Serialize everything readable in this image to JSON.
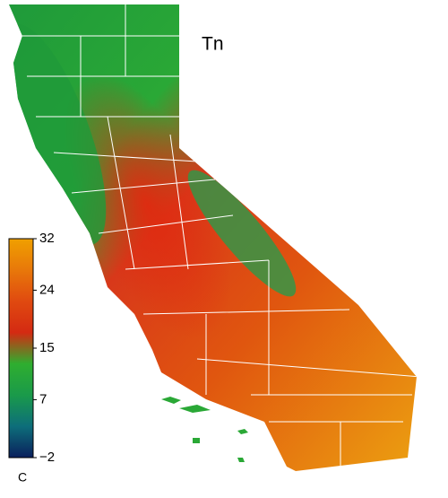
{
  "title": "Tn",
  "colorbar": {
    "label": "C",
    "range": [
      -2,
      32
    ],
    "ticks": [
      {
        "value": -2,
        "label": "−2"
      },
      7,
      15,
      24,
      32
    ],
    "colormap": [
      "#0a1f5c",
      "#0d6e7a",
      "#1a9a4a",
      "#2fae2f",
      "#d42a12",
      "#e04a10",
      "#e8780a",
      "#f0a000"
    ]
  }
}
